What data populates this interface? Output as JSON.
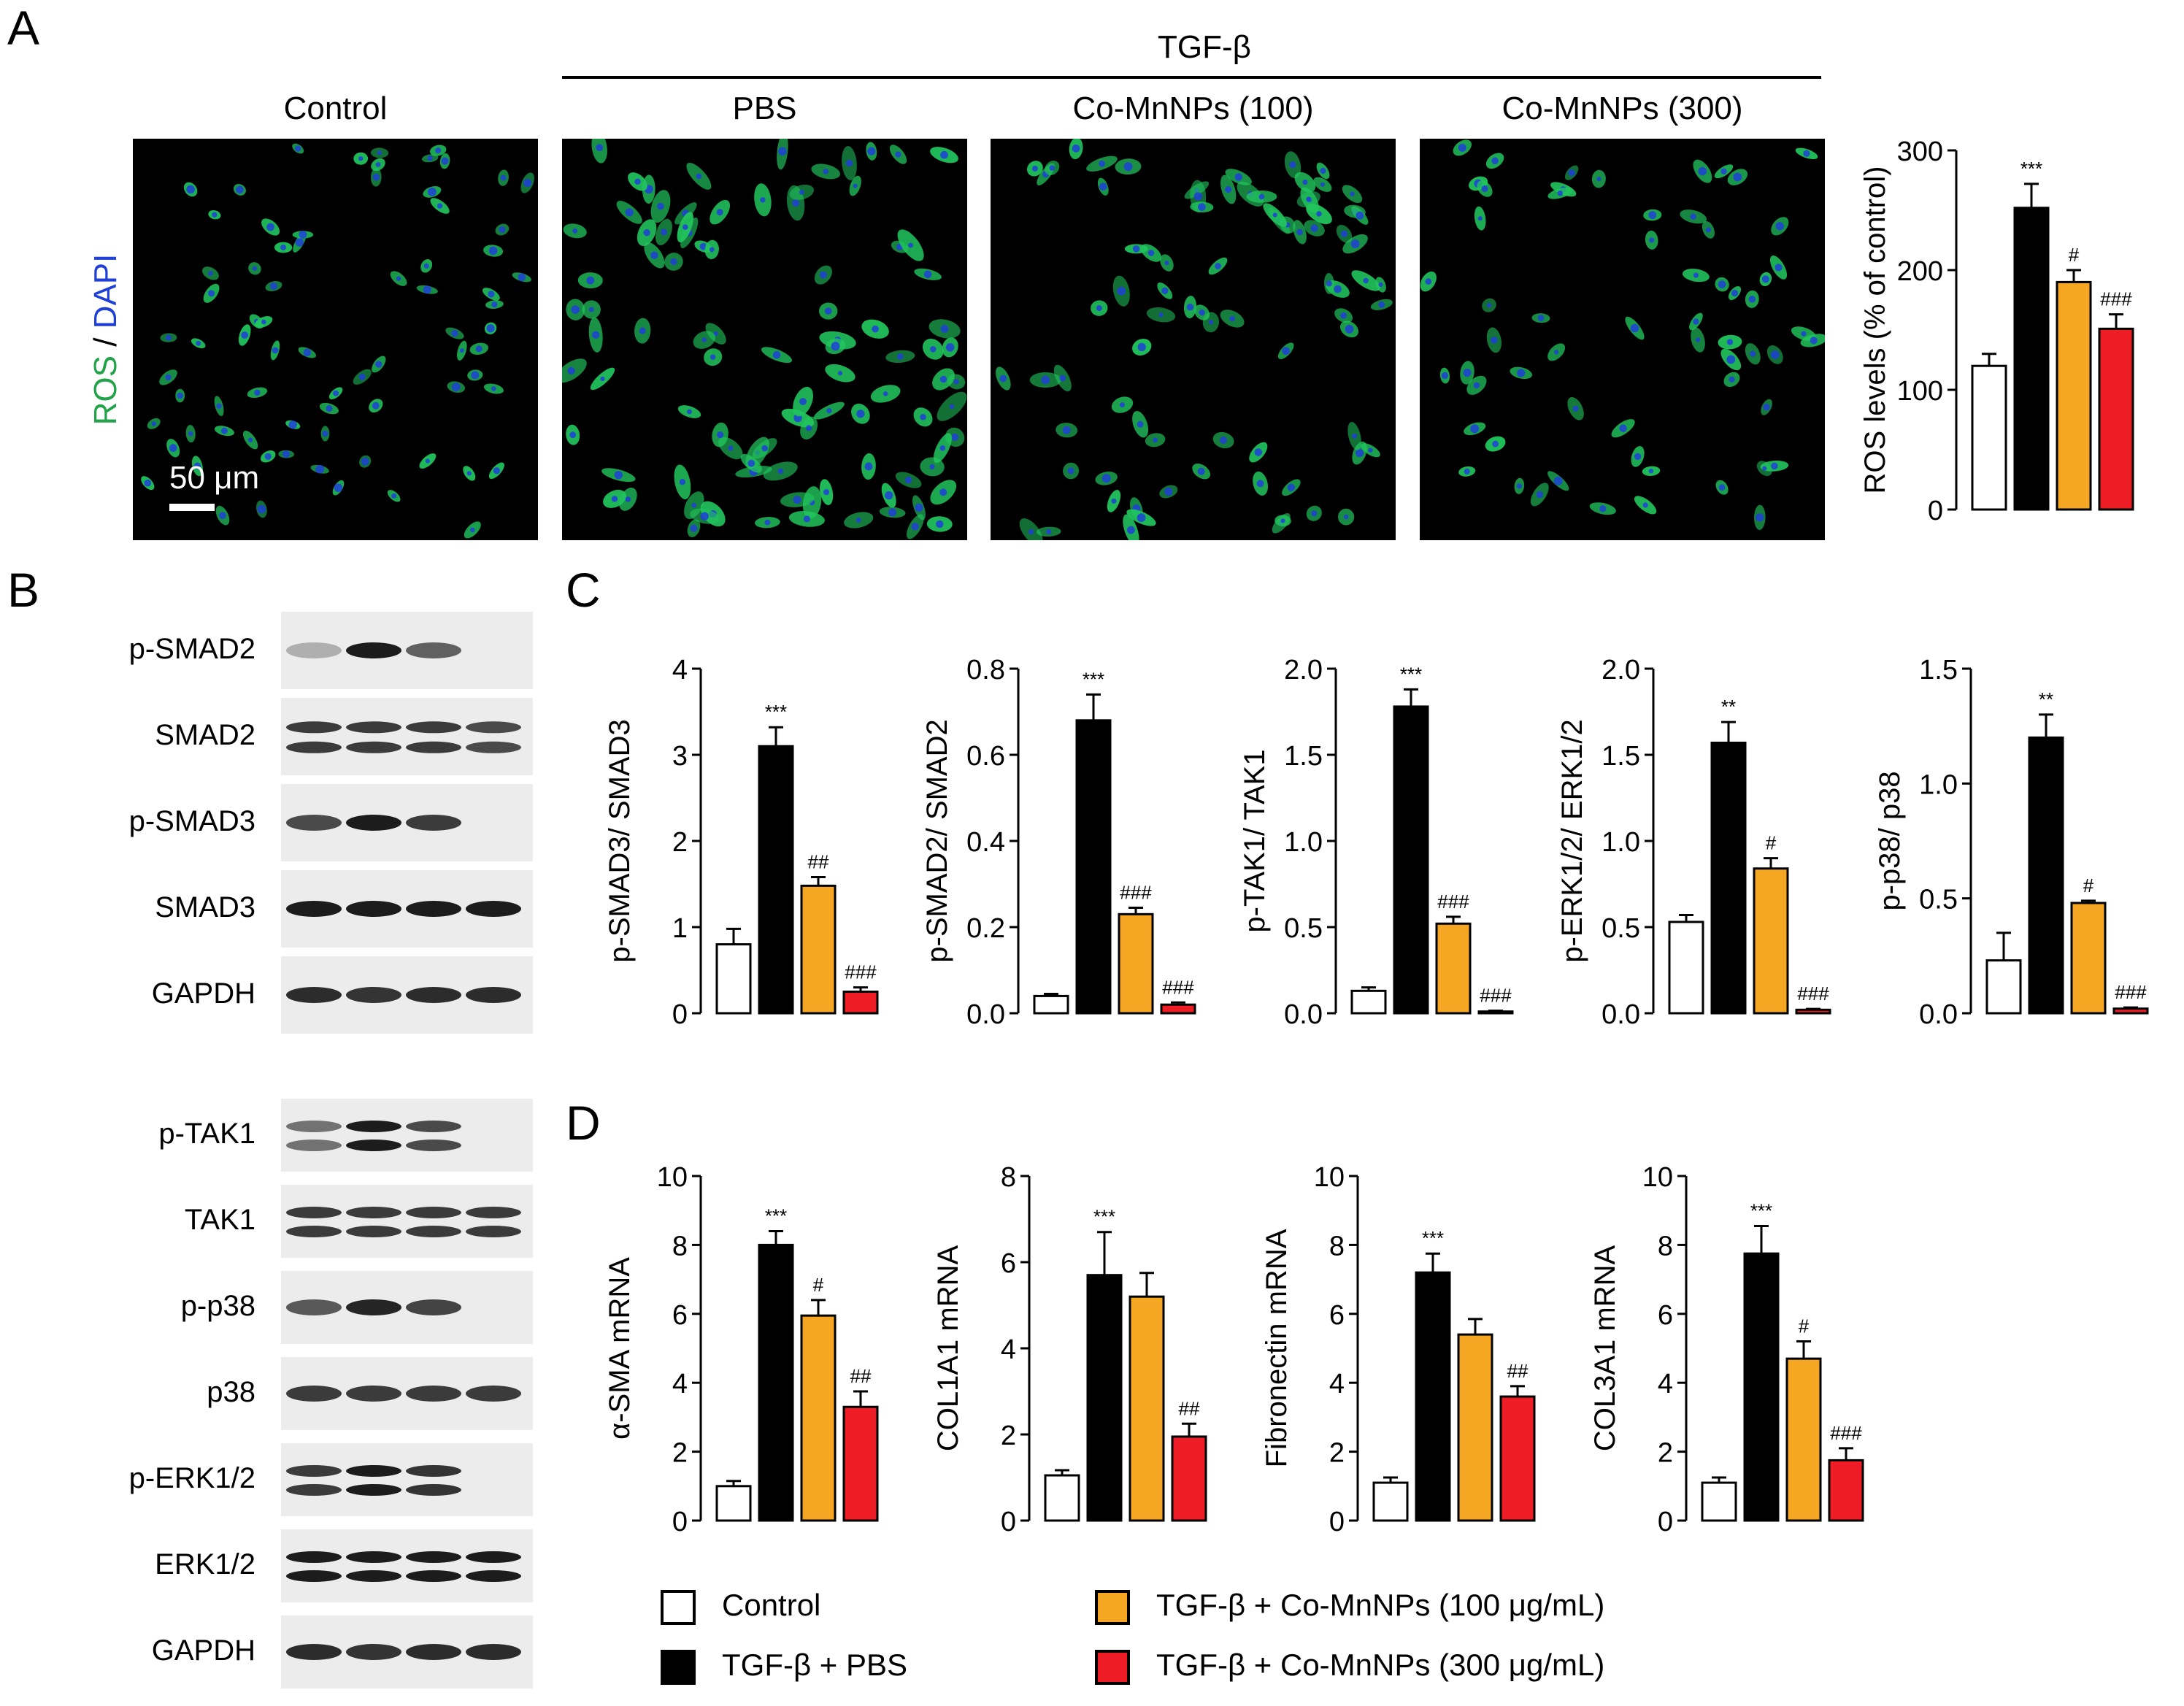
{
  "panel_letters": {
    "a": "A",
    "b": "B",
    "c": "C",
    "d": "D"
  },
  "panel_a": {
    "treatment_header": "TGF-β",
    "columns": [
      "Control",
      "PBS",
      "Co-MnNPs (100)",
      "Co-MnNPs (300)"
    ],
    "stain_label_ros": "ROS",
    "stain_label_sep": " / ",
    "stain_label_dapi": "DAPI",
    "scale_bar": "50 μm",
    "colors": {
      "ros": "#22c55e",
      "dapi": "#1e3fd8"
    }
  },
  "panel_b": {
    "group1": [
      "p-SMAD2",
      "SMAD2",
      "p-SMAD3",
      "SMAD3",
      "GAPDH"
    ],
    "group2": [
      "p-TAK1",
      "TAK1",
      "p-p38",
      "p38",
      "p-ERK1/2",
      "ERK1/2",
      "GAPDH"
    ]
  },
  "legend": {
    "items": [
      {
        "label": "Control",
        "color": "#ffffff"
      },
      {
        "label": "TGF-β + PBS",
        "color": "#000000"
      },
      {
        "label": "TGF-β + Co-MnNPs (100 μg/mL)",
        "color": "#f5a623"
      },
      {
        "label": "TGF-β + Co-MnNPs (300 μg/mL)",
        "color": "#ee1c25"
      }
    ]
  },
  "chart_data": [
    {
      "id": "ros",
      "type": "bar",
      "categories": [
        "Control",
        "TGF-β + PBS",
        "TGF-β + Co-MnNPs (100 μg/mL)",
        "TGF-β + Co-MnNPs (300 μg/mL)"
      ],
      "values": [
        120,
        252,
        190,
        151
      ],
      "errors": [
        10,
        20,
        10,
        12
      ],
      "ylabel": "ROS levels (% of control)",
      "ylim": [
        0,
        300
      ],
      "yticks": [
        "0",
        "100",
        "200",
        "300"
      ],
      "annotations": [
        "",
        "***",
        "#",
        "###"
      ],
      "colors": [
        "#ffffff",
        "#000000",
        "#f5a623",
        "#ee1c25"
      ]
    },
    {
      "id": "smad3",
      "type": "bar",
      "categories": [
        "Control",
        "TGF-β + PBS",
        "TGF-β + Co-MnNPs (100 μg/mL)",
        "TGF-β + Co-MnNPs (300 μg/mL)"
      ],
      "values": [
        0.8,
        3.1,
        1.48,
        0.25
      ],
      "errors": [
        0.18,
        0.22,
        0.1,
        0.05
      ],
      "ylabel": "p-SMAD3/ SMAD3",
      "ylim": [
        0,
        4
      ],
      "yticks": [
        "0",
        "1",
        "2",
        "3",
        "4"
      ],
      "annotations": [
        "",
        "***",
        "##",
        "###"
      ],
      "colors": [
        "#ffffff",
        "#000000",
        "#f5a623",
        "#ee1c25"
      ]
    },
    {
      "id": "smad2",
      "type": "bar",
      "categories": [
        "Control",
        "TGF-β + PBS",
        "TGF-β + Co-MnNPs (100 μg/mL)",
        "TGF-β + Co-MnNPs (300 μg/mL)"
      ],
      "values": [
        0.04,
        0.68,
        0.23,
        0.02
      ],
      "errors": [
        0.005,
        0.06,
        0.015,
        0.005
      ],
      "ylabel": "p-SMAD2/ SMAD2",
      "ylim": [
        0,
        0.8
      ],
      "yticks": [
        "0.0",
        "0.2",
        "0.4",
        "0.6",
        "0.8"
      ],
      "annotations": [
        "",
        "***",
        "###",
        "###"
      ],
      "colors": [
        "#ffffff",
        "#000000",
        "#f5a623",
        "#ee1c25"
      ]
    },
    {
      "id": "tak1",
      "type": "bar",
      "categories": [
        "Control",
        "TGF-β + PBS",
        "TGF-β + Co-MnNPs (100 μg/mL)",
        "TGF-β + Co-MnNPs (300 μg/mL)"
      ],
      "values": [
        0.13,
        1.78,
        0.52,
        0.01
      ],
      "errors": [
        0.02,
        0.1,
        0.04,
        0.005
      ],
      "ylabel": "p-TAK1/ TAK1",
      "ylim": [
        0,
        2.0
      ],
      "yticks": [
        "0.0",
        "0.5",
        "1.0",
        "1.5",
        "2.0"
      ],
      "annotations": [
        "",
        "***",
        "###",
        "###"
      ],
      "colors": [
        "#ffffff",
        "#000000",
        "#f5a623",
        "#ee1c25"
      ]
    },
    {
      "id": "erk",
      "type": "bar",
      "categories": [
        "Control",
        "TGF-β + PBS",
        "TGF-β + Co-MnNPs (100 μg/mL)",
        "TGF-β + Co-MnNPs (300 μg/mL)"
      ],
      "values": [
        0.53,
        1.57,
        0.84,
        0.02
      ],
      "errors": [
        0.04,
        0.12,
        0.06,
        0.005
      ],
      "ylabel": "p-ERK1/2/ ERK1/2",
      "ylim": [
        0,
        2.0
      ],
      "yticks": [
        "0.0",
        "0.5",
        "1.0",
        "1.5",
        "2.0"
      ],
      "annotations": [
        "",
        "**",
        "#",
        "###"
      ],
      "colors": [
        "#ffffff",
        "#000000",
        "#f5a623",
        "#ee1c25"
      ]
    },
    {
      "id": "p38",
      "type": "bar",
      "categories": [
        "Control",
        "TGF-β + PBS",
        "TGF-β + Co-MnNPs (100 μg/mL)",
        "TGF-β + Co-MnNPs (300 μg/mL)"
      ],
      "values": [
        0.23,
        1.2,
        0.48,
        0.02
      ],
      "errors": [
        0.12,
        0.1,
        0.01,
        0.005
      ],
      "ylabel": "p-p38/ p38",
      "ylim": [
        0,
        1.5
      ],
      "yticks": [
        "0.0",
        "0.5",
        "1.0",
        "1.5"
      ],
      "annotations": [
        "",
        "**",
        "#",
        "###"
      ],
      "colors": [
        "#ffffff",
        "#000000",
        "#f5a623",
        "#ee1c25"
      ]
    },
    {
      "id": "asma",
      "type": "bar",
      "categories": [
        "Control",
        "TGF-β + PBS",
        "TGF-β + Co-MnNPs (100 μg/mL)",
        "TGF-β + Co-MnNPs (300 μg/mL)"
      ],
      "values": [
        1.0,
        8.0,
        5.95,
        3.3
      ],
      "errors": [
        0.15,
        0.4,
        0.45,
        0.45
      ],
      "ylabel": "α-SMA mRNA",
      "ylim": [
        0,
        10
      ],
      "yticks": [
        "0",
        "2",
        "4",
        "6",
        "8",
        "10"
      ],
      "annotations": [
        "",
        "***",
        "#",
        "##"
      ],
      "colors": [
        "#ffffff",
        "#000000",
        "#f5a623",
        "#ee1c25"
      ]
    },
    {
      "id": "col1a1",
      "type": "bar",
      "categories": [
        "Control",
        "TGF-β + PBS",
        "TGF-β + Co-MnNPs (100 μg/mL)",
        "TGF-β + Co-MnNPs (300 μg/mL)"
      ],
      "values": [
        1.05,
        5.7,
        5.2,
        1.95
      ],
      "errors": [
        0.12,
        1.0,
        0.55,
        0.3
      ],
      "ylabel": "COL1A1 mRNA",
      "ylim": [
        0,
        8
      ],
      "yticks": [
        "0",
        "2",
        "4",
        "6",
        "8"
      ],
      "annotations": [
        "",
        "***",
        "",
        "##"
      ],
      "colors": [
        "#ffffff",
        "#000000",
        "#f5a623",
        "#ee1c25"
      ]
    },
    {
      "id": "fibronectin",
      "type": "bar",
      "categories": [
        "Control",
        "TGF-β + PBS",
        "TGF-β + Co-MnNPs (100 μg/mL)",
        "TGF-β + Co-MnNPs (300 μg/mL)"
      ],
      "values": [
        1.1,
        7.2,
        5.4,
        3.6
      ],
      "errors": [
        0.15,
        0.55,
        0.45,
        0.3
      ],
      "ylabel": "Fibronectin mRNA",
      "ylim": [
        0,
        10
      ],
      "yticks": [
        "0",
        "2",
        "4",
        "6",
        "8",
        "10"
      ],
      "annotations": [
        "",
        "***",
        "",
        "##"
      ],
      "colors": [
        "#ffffff",
        "#000000",
        "#f5a623",
        "#ee1c25"
      ]
    },
    {
      "id": "col3a1",
      "type": "bar",
      "categories": [
        "Control",
        "TGF-β + PBS",
        "TGF-β + Co-MnNPs (100 μg/mL)",
        "TGF-β + Co-MnNPs (300 μg/mL)"
      ],
      "values": [
        1.1,
        7.75,
        4.7,
        1.75
      ],
      "errors": [
        0.15,
        0.8,
        0.5,
        0.35
      ],
      "ylabel": "COL3A1 mRNA",
      "ylim": [
        0,
        10
      ],
      "yticks": [
        "0",
        "2",
        "4",
        "6",
        "8",
        "10"
      ],
      "annotations": [
        "",
        "***",
        "#",
        "###"
      ],
      "colors": [
        "#ffffff",
        "#000000",
        "#f5a623",
        "#ee1c25"
      ]
    }
  ]
}
